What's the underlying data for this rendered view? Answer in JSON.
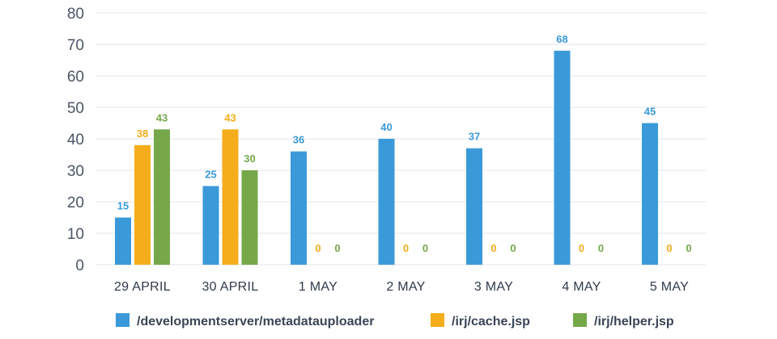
{
  "chart_data": {
    "type": "bar",
    "categories": [
      "29 APRIL",
      "30 APRIL",
      "1 MAY",
      "2 MAY",
      "3 MAY",
      "4 MAY",
      "5 MAY"
    ],
    "series": [
      {
        "name": "/developmentserver/metadatauploader",
        "color": "#3a9ad9",
        "values": [
          15,
          25,
          36,
          40,
          37,
          68,
          45
        ]
      },
      {
        "name": "/irj/cache.jsp",
        "color": "#f5ad1c",
        "values": [
          38,
          43,
          0,
          0,
          0,
          0,
          0
        ]
      },
      {
        "name": "/irj/helper.jsp",
        "color": "#76a84a",
        "values": [
          43,
          30,
          0,
          0,
          0,
          0,
          0
        ]
      }
    ],
    "ylim": [
      0,
      80
    ],
    "yticks": [
      0,
      10,
      20,
      30,
      40,
      50,
      60,
      70,
      80
    ],
    "grid": true,
    "legend_position": "bottom",
    "data_labels": true
  }
}
